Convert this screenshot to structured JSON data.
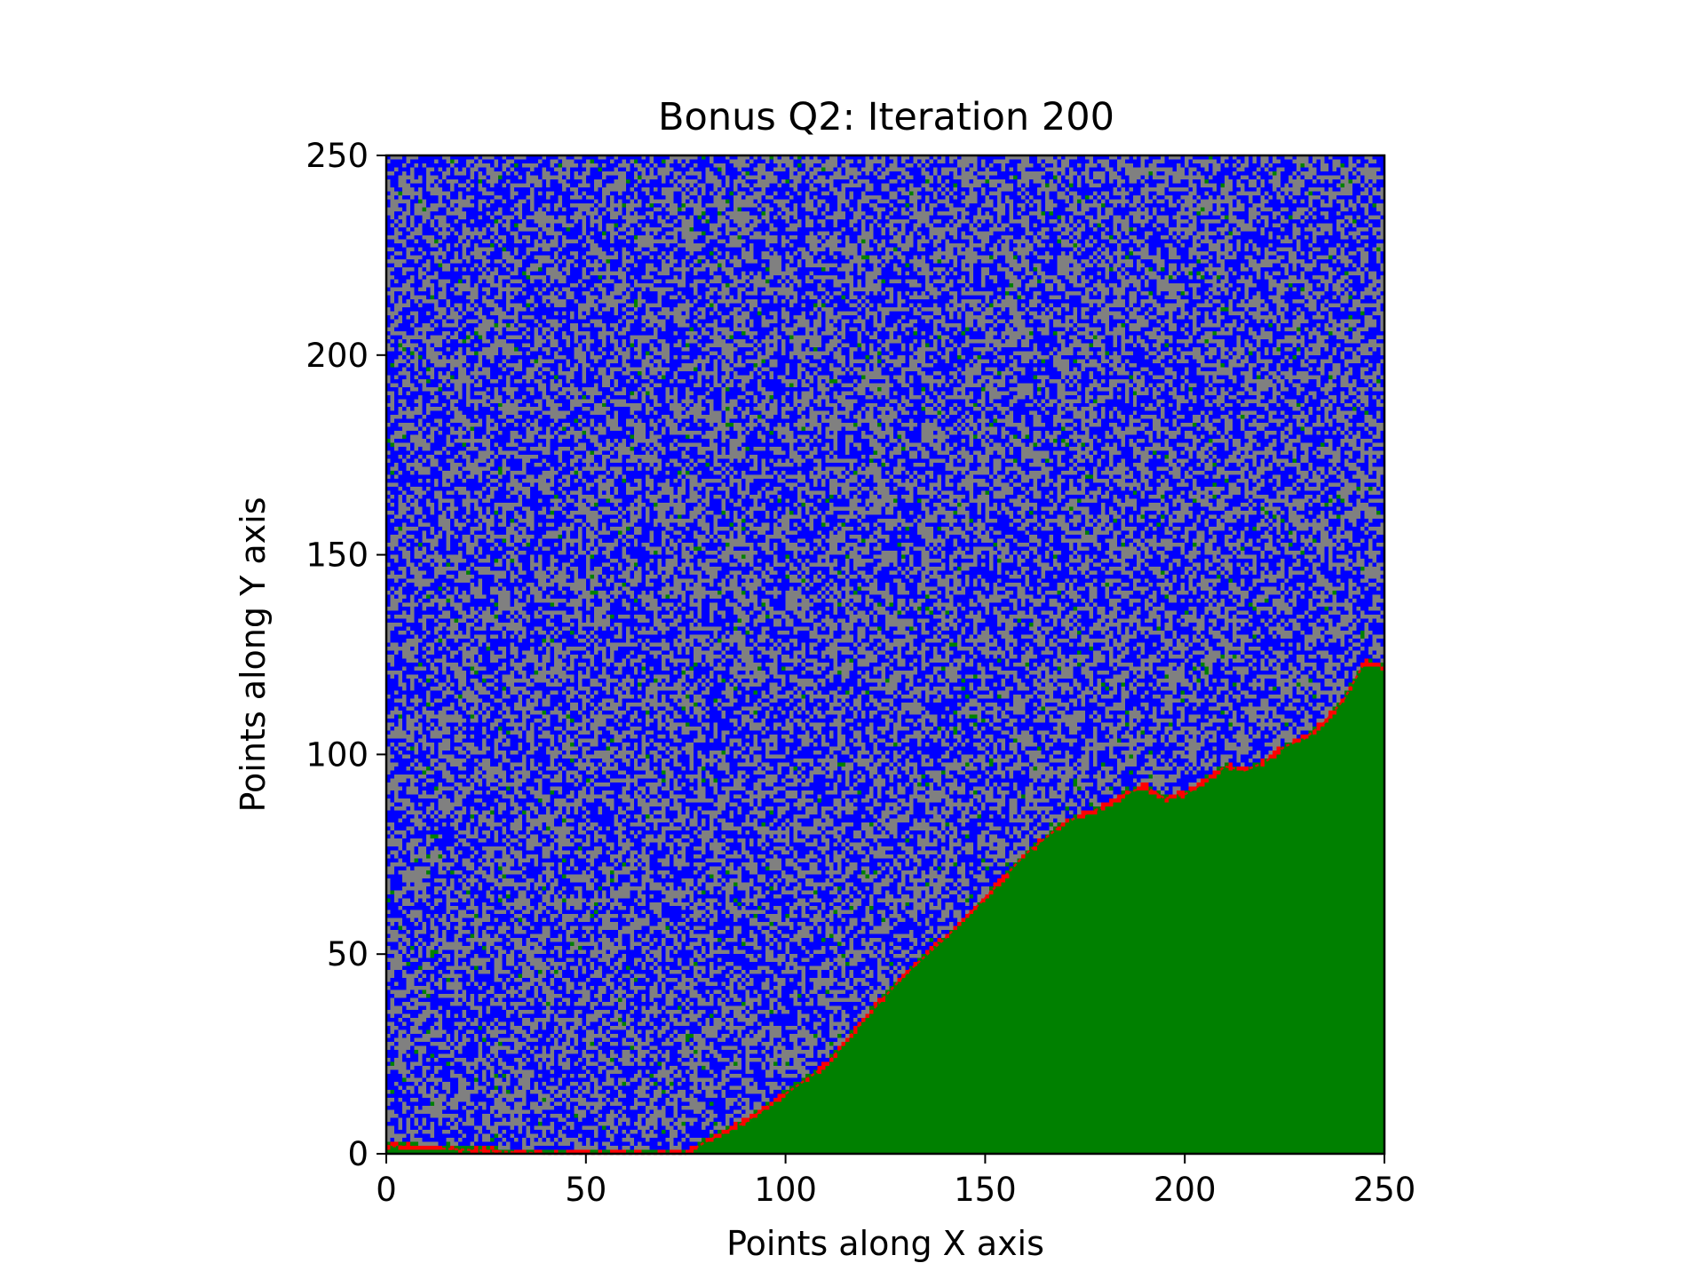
{
  "chart_data": {
    "type": "heatmap",
    "title": "Bonus Q2: Iteration 200",
    "xlabel": "Points along X axis",
    "ylabel": "Points along Y axis",
    "xlim": [
      0,
      250
    ],
    "ylim": [
      0,
      250
    ],
    "grid": false,
    "x_ticks": [
      "0",
      "50",
      "100",
      "150",
      "200",
      "250"
    ],
    "y_ticks": [
      "0",
      "50",
      "100",
      "150",
      "200",
      "250"
    ],
    "grid_size": [
      250,
      250
    ],
    "cell_states": [
      {
        "state": "empty",
        "color": "#808080"
      },
      {
        "state": "susceptible",
        "color": "#0000ff"
      },
      {
        "state": "burning",
        "color": "#ff0000"
      },
      {
        "state": "burnt",
        "color": "#008000"
      }
    ],
    "front_boundary": {
      "x": [
        0,
        20,
        40,
        60,
        75,
        80,
        90,
        100,
        110,
        120,
        130,
        140,
        150,
        160,
        170,
        175,
        180,
        185,
        190,
        195,
        200,
        205,
        210,
        215,
        220,
        225,
        230,
        235,
        240,
        245,
        250
      ],
      "y": [
        2,
        1,
        0,
        0,
        0,
        3,
        8,
        15,
        22,
        34,
        45,
        54,
        64,
        75,
        83,
        85,
        87,
        90,
        92,
        89,
        90,
        93,
        97,
        96,
        98,
        102,
        104,
        108,
        114,
        123,
        122
      ]
    }
  }
}
